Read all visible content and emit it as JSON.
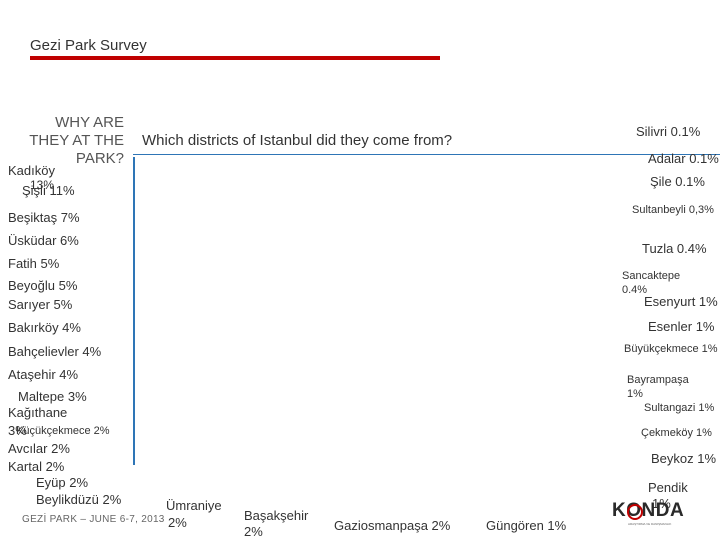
{
  "header": {
    "title": "Gezi Park Survey"
  },
  "side_title": {
    "line1": "WHY ARE",
    "line2": "THEY AT THE",
    "line3": "PARK?"
  },
  "question": "Which districts of Istanbul did they come from?",
  "left_districts": {
    "kadikoy": "Kadıköy",
    "kadikoy_pct": "13%",
    "sisli": "Şişli 11%",
    "besiktas": "Beşiktaş  7%",
    "uskudar": "Üsküdar 6%",
    "fatih": "Fatih  5%",
    "beyoglu": "Beyoğlu 5%",
    "sariyer": "Sarıyer 5%",
    "bakirkoy": "Bakırköy  4%",
    "bahcelievler": "Bahçelievler  4%",
    "atasehir": "Ataşehir  4%",
    "maltepe": "Maltepe 3%",
    "kagithane": "Kağıthane",
    "kagithane_pct": "3%",
    "kucukcekmece": "Küçükçekmece  2%",
    "avcilar": "Avcılar 2%",
    "kartal": "Kartal 2%",
    "eyup": "Eyüp 2%",
    "beylikduzu": "Beylikdüzü  2%"
  },
  "bottom_districts": {
    "umraniye": "Ümraniye",
    "umraniye_pct": "2%",
    "basaksehir": "Başakşehir",
    "basaksehir_pct": "2%",
    "gaziosmanpasa": "Gaziosmanpaşa 2%",
    "gungoren": "Güngören 1%"
  },
  "right_districts": {
    "silivri": "Silivri 0.1%",
    "adalar": "Adalar 0.1%",
    "sile": "Şile 0.1%",
    "sultanbeyli": "Sultanbeyli 0,3%",
    "tuzla": "Tuzla 0.4%",
    "sancaktepe": "Sancaktepe",
    "sancaktepe_pct": "0.4%",
    "esenyurt": "Esenyurt 1%",
    "esenler": "Esenler 1%",
    "buyukcekmece": "Büyükçekmece 1%",
    "bayrampasa": "Bayrampaşa",
    "bayrampasa_pct": "1%",
    "sultangazi": "Sultangazi 1%",
    "cekmekoy": "Çekmeköy 1%",
    "beykoz": "Beykoz  1%",
    "pendik": "Pendik",
    "pendik_pct": "1%"
  },
  "footer": {
    "text": "GEZİ PARK – JUNE 6-7, 2013"
  },
  "logo": {
    "text": "KONDA",
    "subtext": "ARAŞTIRMA VE DANIŞMANLIK"
  },
  "colors": {
    "accent_red": "#c00000",
    "divider_blue": "#2e75b6",
    "text": "#333333"
  }
}
